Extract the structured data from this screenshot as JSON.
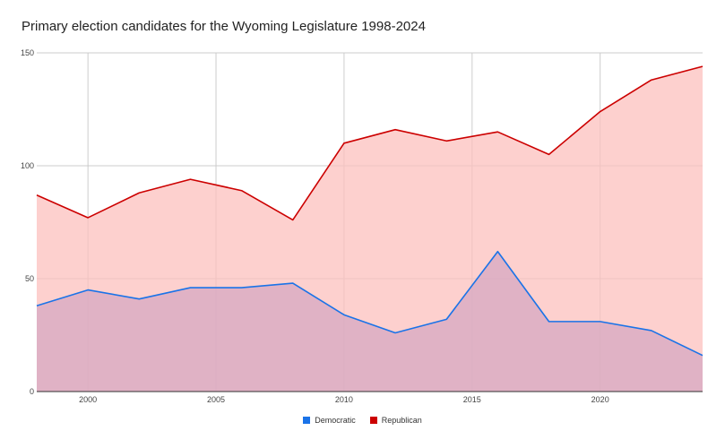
{
  "chart_data": {
    "type": "area",
    "title": "Primary election candidates for the Wyoming Legislature 1998-2024",
    "xlabel": "",
    "ylabel": "",
    "xlim": [
      1998,
      2024
    ],
    "ylim": [
      0,
      150
    ],
    "x_ticks": [
      "2000",
      "2005",
      "2010",
      "2015",
      "2020"
    ],
    "y_ticks": [
      "0",
      "50",
      "100",
      "150"
    ],
    "x": [
      1998,
      2000,
      2002,
      2004,
      2006,
      2008,
      2010,
      2012,
      2014,
      2016,
      2018,
      2020,
      2022,
      2024
    ],
    "series": [
      {
        "name": "Democratic",
        "color": "#1a73e8",
        "fill": "#d5a8c2",
        "values": [
          38,
          45,
          41,
          46,
          46,
          48,
          34,
          26,
          32,
          62,
          31,
          31,
          27,
          16
        ]
      },
      {
        "name": "Republican",
        "color": "#cc0000",
        "fill": "#fcc0bd",
        "values": [
          87,
          77,
          88,
          94,
          89,
          76,
          110,
          116,
          111,
          115,
          105,
          124,
          138,
          144
        ]
      }
    ],
    "grid": true,
    "legend_position": "bottom"
  }
}
